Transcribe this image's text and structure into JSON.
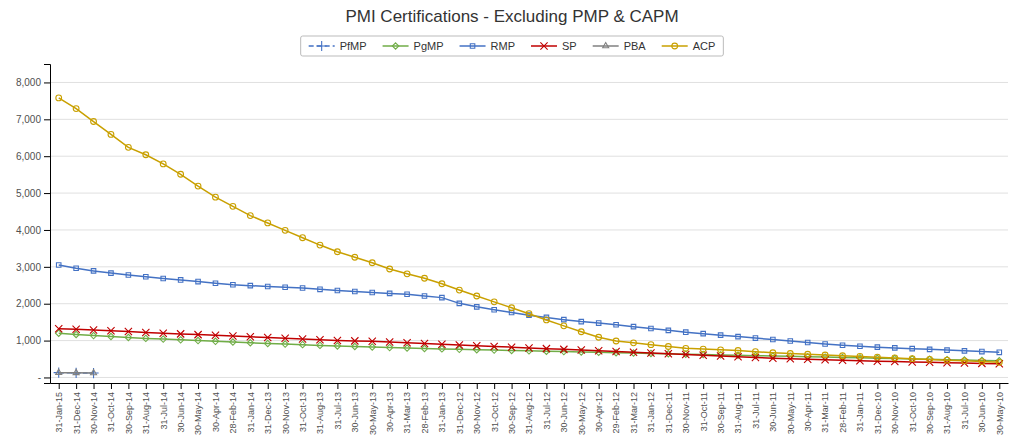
{
  "chart_data": {
    "type": "line",
    "title": "PMI Certifications - Excluding PMP & CAPM",
    "categories": [
      "31-Jan-15",
      "31-Dec-14",
      "30-Nov-14",
      "31-Oct-14",
      "30-Sep-14",
      "31-Aug-14",
      "31-Jul-14",
      "30-Jun-14",
      "30-May-14",
      "30-Apr-14",
      "28-Feb-14",
      "31-Jan-14",
      "31-Dec-13",
      "30-Nov-13",
      "31-Oct-13",
      "31-Aug-13",
      "31-Jul-13",
      "30-Jun-13",
      "30-May-13",
      "30-Apr-13",
      "31-Mar-13",
      "28-Feb-13",
      "31-Jan-13",
      "31-Dec-12",
      "30-Nov-12",
      "31-Oct-12",
      "30-Sep-12",
      "31-Aug-12",
      "31-Jul-12",
      "30-Jun-12",
      "30-May-12",
      "30-Apr-12",
      "29-Feb-12",
      "31-Mar-12",
      "31-Jan-12",
      "31-Dec-11",
      "30-Nov-11",
      "31-Oct-11",
      "30-Sep-11",
      "31-Aug-11",
      "31-Jul-11",
      "30-Jun-11",
      "30-May-11",
      "30-Apr-11",
      "31-Mar-11",
      "28-Feb-11",
      "31-Jan-11",
      "31-Dec-10",
      "30-Nov-10",
      "31-Oct-10",
      "30-Sep-10",
      "31-Aug-10",
      "31-Jul-10",
      "30-Jun-10",
      "30-May-10"
    ],
    "series": [
      {
        "name": "PfMP",
        "color": "#4472C4",
        "marker": "plus",
        "line_style": "dashed",
        "values": [
          130,
          125,
          120,
          null,
          null,
          null,
          null,
          null,
          null,
          null,
          null,
          null,
          null,
          null,
          null,
          null,
          null,
          null,
          null,
          null,
          null,
          null,
          null,
          null,
          null,
          null,
          null,
          null,
          null,
          null,
          null,
          null,
          null,
          null,
          null,
          null,
          null,
          null,
          null,
          null,
          null,
          null,
          null,
          null,
          null,
          null,
          null,
          null,
          null,
          null,
          null,
          null,
          null,
          null,
          null
        ]
      },
      {
        "name": "PgMP",
        "color": "#70AD47",
        "marker": "diamond",
        "line_style": "solid",
        "values": [
          1200,
          1165,
          1135,
          1110,
          1085,
          1060,
          1040,
          1020,
          1000,
          980,
          960,
          940,
          920,
          905,
          890,
          870,
          855,
          840,
          825,
          810,
          798,
          785,
          775,
          763,
          752,
          742,
          732,
          722,
          712,
          702,
          692,
          682,
          672,
          662,
          652,
          642,
          632,
          622,
          612,
          602,
          592,
          582,
          572,
          562,
          552,
          542,
          532,
          522,
          512,
          502,
          492,
          482,
          472,
          462,
          452
        ]
      },
      {
        "name": "RMP",
        "color": "#4472C4",
        "marker": "square",
        "line_style": "solid",
        "values": [
          3050,
          2960,
          2890,
          2830,
          2780,
          2730,
          2685,
          2645,
          2600,
          2555,
          2515,
          2490,
          2465,
          2445,
          2425,
          2390,
          2360,
          2330,
          2305,
          2280,
          2255,
          2210,
          2165,
          2010,
          1915,
          1835,
          1760,
          1690,
          1628,
          1568,
          1515,
          1475,
          1428,
          1378,
          1328,
          1278,
          1228,
          1188,
          1148,
          1108,
          1068,
          1028,
          988,
          948,
          908,
          875,
          845,
          822,
          802,
          782,
          762,
          742,
          722,
          702,
          682
        ]
      },
      {
        "name": "SP",
        "color": "#C00000",
        "marker": "x",
        "line_style": "solid",
        "values": [
          1320,
          1305,
          1285,
          1265,
          1245,
          1222,
          1202,
          1182,
          1162,
          1142,
          1122,
          1102,
          1082,
          1062,
          1042,
          1022,
          1002,
          992,
          982,
          962,
          942,
          922,
          902,
          882,
          862,
          842,
          822,
          802,
          782,
          762,
          742,
          722,
          702,
          682,
          662,
          642,
          622,
          602,
          582,
          562,
          542,
          522,
          507,
          492,
          480,
          467,
          454,
          442,
          432,
          422,
          412,
          402,
          392,
          382,
          372
        ]
      },
      {
        "name": "PBA",
        "color": "#808080",
        "marker": "triangle",
        "line_style": "solid",
        "values": [
          130,
          125,
          120,
          null,
          null,
          null,
          null,
          null,
          null,
          null,
          null,
          null,
          null,
          null,
          null,
          null,
          null,
          null,
          null,
          null,
          null,
          null,
          null,
          null,
          null,
          null,
          null,
          null,
          null,
          null,
          null,
          null,
          null,
          null,
          null,
          null,
          null,
          null,
          null,
          null,
          null,
          null,
          null,
          null,
          null,
          null,
          null,
          null,
          null,
          null,
          null,
          null,
          null,
          null,
          null
        ]
      },
      {
        "name": "ACP",
        "color": "#C9A000",
        "marker": "circle",
        "line_style": "solid",
        "values": [
          7580,
          7290,
          6940,
          6590,
          6240,
          6040,
          5790,
          5510,
          5190,
          4890,
          4640,
          4390,
          4190,
          3990,
          3790,
          3590,
          3410,
          3260,
          3110,
          2940,
          2810,
          2690,
          2540,
          2370,
          2210,
          2050,
          1890,
          1730,
          1560,
          1400,
          1240,
          1090,
          990,
          940,
          890,
          840,
          790,
          770,
          750,
          730,
          700,
          670,
          650,
          630,
          610,
          590,
          570,
          550,
          530,
          510,
          490,
          470,
          450,
          430,
          410
        ]
      }
    ],
    "ylim": [
      -150,
      8500
    ],
    "yticks": [
      {
        "value": 0,
        "label": "-"
      },
      {
        "value": 1000,
        "label": "1,000"
      },
      {
        "value": 2000,
        "label": "2,000"
      },
      {
        "value": 3000,
        "label": "3,000"
      },
      {
        "value": 4000,
        "label": "4,000"
      },
      {
        "value": 5000,
        "label": "5,000"
      },
      {
        "value": 6000,
        "label": "6,000"
      },
      {
        "value": 7000,
        "label": "7,000"
      },
      {
        "value": 8000,
        "label": "8,000"
      }
    ],
    "grid": true,
    "legend": "top"
  }
}
